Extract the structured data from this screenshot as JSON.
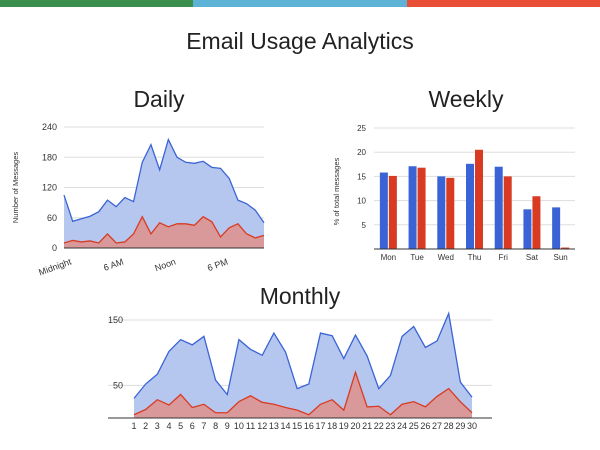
{
  "colors": {
    "stripe": [
      "#3b8f4d",
      "#5db3d6",
      "#e94e36"
    ],
    "blue": "#3a64d6",
    "red": "#d93b22",
    "blue_fill": "#b5c6ef",
    "red_fill": "#d9999b",
    "grid": "#dddddd"
  },
  "page_title": "Email Usage Analytics",
  "chart_data": [
    {
      "id": "daily",
      "type": "area",
      "title": "Daily",
      "ylabel": "Number of Messages",
      "ylim": [
        0,
        240
      ],
      "yticks": [
        0,
        60,
        120,
        180,
        240
      ],
      "xlim": [
        0,
        23
      ],
      "xticks": [
        {
          "x": 0,
          "label": "Midnight"
        },
        {
          "x": 6,
          "label": "6 AM"
        },
        {
          "x": 12,
          "label": "Noon"
        },
        {
          "x": 18,
          "label": "6 PM"
        }
      ],
      "x": [
        0,
        1,
        2,
        3,
        4,
        5,
        6,
        7,
        8,
        9,
        10,
        11,
        12,
        13,
        14,
        15,
        16,
        17,
        18,
        19,
        20,
        21,
        22,
        23
      ],
      "series": [
        {
          "color": "blue",
          "values": [
            105,
            53,
            58,
            63,
            72,
            95,
            82,
            100,
            92,
            170,
            205,
            155,
            215,
            180,
            170,
            168,
            172,
            160,
            158,
            138,
            95,
            88,
            75,
            50
          ]
        },
        {
          "color": "red",
          "values": [
            10,
            15,
            12,
            14,
            10,
            28,
            10,
            12,
            28,
            62,
            28,
            50,
            42,
            48,
            48,
            45,
            62,
            52,
            22,
            40,
            48,
            28,
            20,
            25
          ]
        }
      ]
    },
    {
      "id": "weekly",
      "type": "bar",
      "title": "Weekly",
      "ylabel": "% of total messages",
      "ylim": [
        0,
        25
      ],
      "yticks": [
        5,
        10,
        15,
        20,
        25
      ],
      "categories": [
        "Mon",
        "Tue",
        "Wed",
        "Thu",
        "Fri",
        "Sat",
        "Sun"
      ],
      "series": [
        {
          "color": "blue",
          "values": [
            15.8,
            17.1,
            15.0,
            17.6,
            17.0,
            8.2,
            8.6
          ]
        },
        {
          "color": "red",
          "values": [
            15.1,
            16.8,
            14.7,
            20.5,
            15.0,
            10.9,
            0.3
          ]
        }
      ]
    },
    {
      "id": "monthly",
      "type": "area",
      "title": "Monthly",
      "ylim": [
        0,
        150
      ],
      "yticks": [
        50,
        150
      ],
      "categories": [
        "1",
        "2",
        "3",
        "4",
        "5",
        "6",
        "7",
        "8",
        "9",
        "10",
        "11",
        "12",
        "13",
        "14",
        "15",
        "16",
        "17",
        "18",
        "19",
        "20",
        "21",
        "22",
        "23",
        "24",
        "25",
        "26",
        "27",
        "28",
        "29",
        "30"
      ],
      "series": [
        {
          "color": "blue",
          "values": [
            30,
            52,
            67,
            102,
            120,
            112,
            125,
            58,
            36,
            120,
            105,
            96,
            130,
            101,
            45,
            52,
            130,
            126,
            91,
            127,
            95,
            45,
            65,
            125,
            140,
            108,
            118,
            160,
            55,
            32
          ]
        },
        {
          "color": "red",
          "values": [
            5,
            13,
            28,
            20,
            36,
            16,
            21,
            8,
            8,
            25,
            34,
            24,
            21,
            16,
            12,
            5,
            21,
            28,
            12,
            70,
            17,
            18,
            5,
            21,
            25,
            17,
            33,
            45,
            25,
            8
          ]
        }
      ]
    }
  ]
}
